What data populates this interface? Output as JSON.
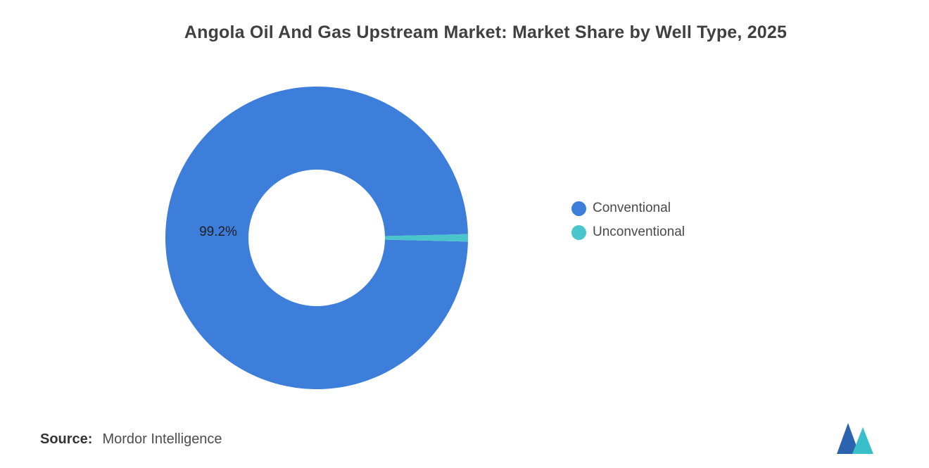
{
  "chart_data": {
    "type": "pie",
    "subtype": "donut",
    "title": "Angola Oil And Gas Upstream Market: Market Share by Well Type, 2025",
    "slices": [
      {
        "label": "Conventional",
        "value": 99.2,
        "display": "99.2%",
        "color": "#3D7EDB"
      },
      {
        "label": "Unconventional",
        "value": 0.8,
        "color": "#4AC5CC"
      }
    ],
    "start_angle_deg": 1.44,
    "inner_radius_ratio": 0.45,
    "legend_position": "right",
    "grid": "off"
  },
  "source": {
    "prefix": "Source:",
    "text": "Mordor Intelligence"
  },
  "logo": {
    "name": "mordor-intelligence",
    "blue": "#2B63AF",
    "teal": "#38BFC9"
  }
}
